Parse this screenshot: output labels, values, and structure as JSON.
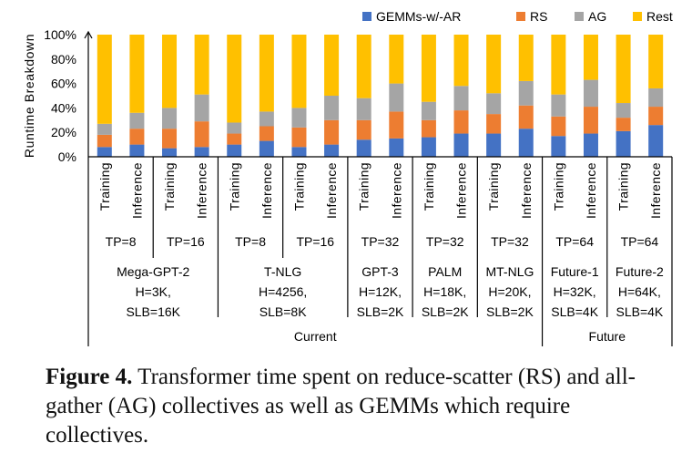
{
  "chart_data": {
    "type": "bar",
    "stacked": true,
    "ylabel": "Runtime Breakdown",
    "ylim": [
      0,
      100
    ],
    "yticks": [
      "0%",
      "20%",
      "40%",
      "60%",
      "80%",
      "100%"
    ],
    "legend_position": "top-right",
    "colors": {
      "GEMMs-w/-AR": "#4472C4",
      "RS": "#ED7D31",
      "AG": "#A5A5A5",
      "Rest": "#FFC000"
    },
    "categories": [
      "Training",
      "Inference",
      "Training",
      "Inference",
      "Training",
      "Inference",
      "Training",
      "Inference",
      "Training",
      "Inference",
      "Training",
      "Inference",
      "Training",
      "Inference",
      "Training",
      "Inference",
      "Training",
      "Inference"
    ],
    "series": [
      {
        "name": "GEMMs-w/-AR",
        "values": [
          8,
          10,
          7,
          8,
          10,
          13,
          8,
          10,
          14,
          15,
          16,
          19,
          19,
          23,
          17,
          19,
          21,
          26
        ]
      },
      {
        "name": "RS",
        "values": [
          10,
          13,
          16,
          21,
          9,
          12,
          16,
          20,
          16,
          22,
          14,
          19,
          16,
          19,
          16,
          22,
          11,
          15
        ]
      },
      {
        "name": "AG",
        "values": [
          9,
          13,
          17,
          22,
          9,
          12,
          16,
          20,
          18,
          23,
          15,
          20,
          17,
          20,
          18,
          22,
          12,
          15
        ]
      },
      {
        "name": "Rest",
        "values": [
          73,
          64,
          60,
          49,
          72,
          63,
          60,
          50,
          52,
          40,
          55,
          42,
          48,
          38,
          49,
          37,
          56,
          44
        ]
      }
    ],
    "tp_labels": [
      "TP=8",
      "TP=16",
      "TP=8",
      "TP=16",
      "TP=32",
      "TP=32",
      "TP=32",
      "TP=64",
      "TP=64"
    ],
    "models": [
      {
        "lines": [
          "Mega-GPT-2",
          "H=3K,",
          "SLB=16K"
        ]
      },
      {
        "lines": [
          "T-NLG",
          "H=4256,",
          "SLB=8K"
        ]
      },
      {
        "lines": [
          "GPT-3",
          "H=12K,",
          "SLB=2K"
        ]
      },
      {
        "lines": [
          "PALM",
          "H=18K,",
          "SLB=2K"
        ]
      },
      {
        "lines": [
          "MT-NLG",
          "H=20K,",
          "SLB=2K"
        ]
      },
      {
        "lines": [
          "Future-1",
          "H=32K,",
          "SLB=4K"
        ]
      },
      {
        "lines": [
          "Future-2",
          "H=64K,",
          "SLB=4K"
        ]
      }
    ],
    "eras": [
      "Current",
      "Future"
    ]
  },
  "caption": {
    "label": "Figure 4.",
    "text": " Transformer time spent on reduce-scatter (RS) and all-gather (AG) collectives as well as GEMMs which require collectives."
  }
}
